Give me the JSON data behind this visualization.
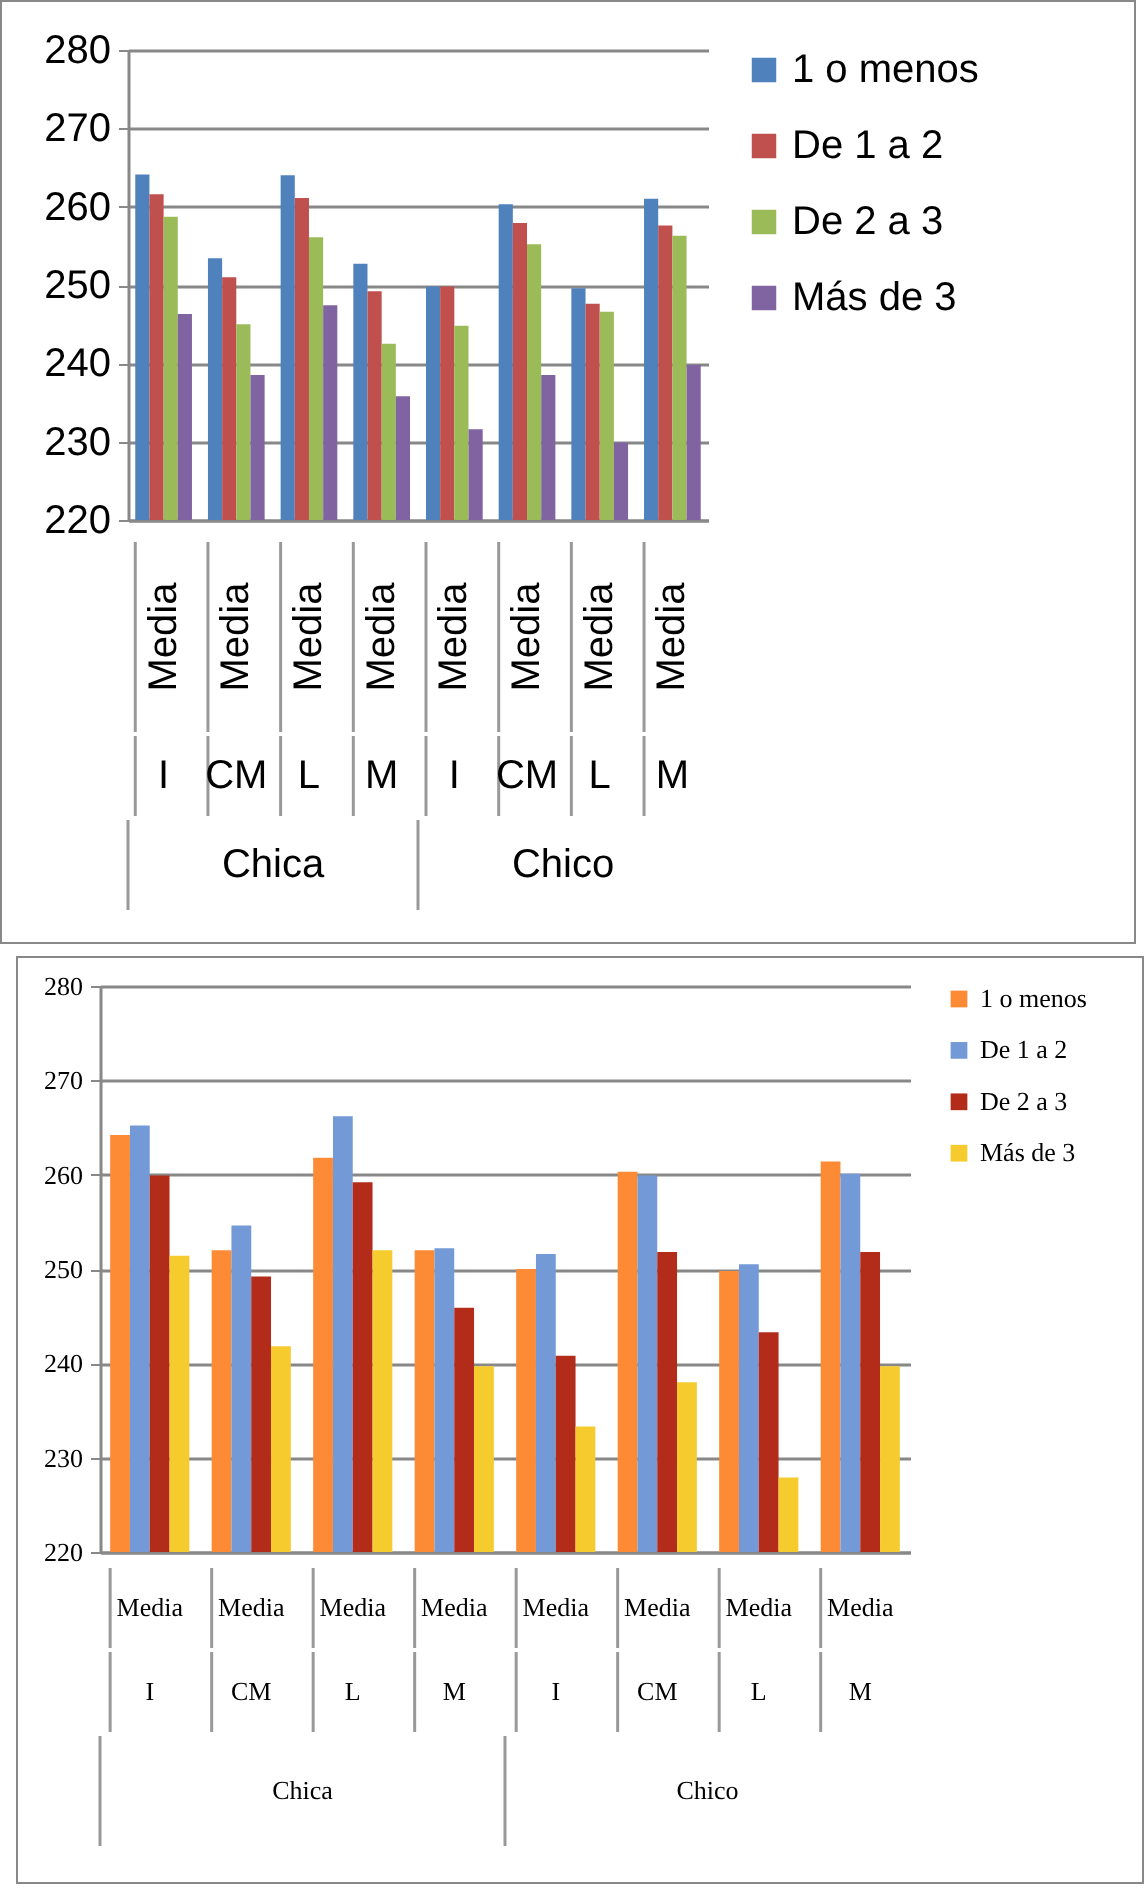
{
  "chart_data": [
    {
      "type": "bar",
      "categories": [
        "Media\nI",
        "Media\nCM",
        "Media\nL",
        "Media\nM",
        "Media\nI",
        "Media\nCM",
        "Media\nL",
        "Media\nM"
      ],
      "annotations": [
        "Chica",
        "Chico"
      ],
      "series": [
        {
          "name": "1 o menos",
          "color": "#4f81bd",
          "values": [
            264.1,
            253.4,
            264.0,
            252.7,
            249.8,
            260.3,
            249.6,
            261.0
          ]
        },
        {
          "name": "De 1 a 2",
          "color": "#c0504d",
          "values": [
            261.6,
            251.0,
            261.1,
            249.2,
            249.8,
            257.9,
            247.6,
            257.6
          ]
        },
        {
          "name": "De 2 a 3",
          "color": "#9bbb59",
          "values": [
            258.7,
            245.0,
            256.1,
            242.5,
            244.8,
            255.2,
            246.6,
            256.3
          ]
        },
        {
          "name": "Más de 3",
          "color": "#8064a2",
          "values": [
            246.3,
            238.5,
            247.4,
            235.8,
            231.6,
            238.5,
            229.9,
            239.8
          ]
        }
      ],
      "ylim": [
        220,
        280
      ],
      "yticks": [
        220,
        230,
        240,
        250,
        260,
        270,
        280
      ],
      "grid": "y",
      "legend": "right"
    },
    {
      "type": "bar",
      "categories": [
        "Media\nI",
        "Media\nCM",
        "Media\nL",
        "Media\nM",
        "Media\nI",
        "Media\nCM",
        "Media\nL",
        "Media\nM"
      ],
      "annotations": [
        "Chica",
        "Chico"
      ],
      "series": [
        {
          "name": "1 o menos",
          "color": "#fd8a35",
          "values": [
            264.2,
            252.0,
            261.8,
            252.0,
            250.0,
            260.3,
            249.8,
            261.4
          ]
        },
        {
          "name": "De 1 a 2",
          "color": "#7399d6",
          "values": [
            265.2,
            254.6,
            266.2,
            252.2,
            251.6,
            259.9,
            250.5,
            260.1
          ]
        },
        {
          "name": "De 2 a 3",
          "color": "#b22c19",
          "values": [
            259.9,
            249.2,
            259.2,
            245.9,
            240.8,
            251.8,
            243.3,
            251.8
          ]
        },
        {
          "name": "Más de 3",
          "color": "#f5cb2e",
          "values": [
            251.4,
            241.8,
            252.0,
            239.7,
            233.3,
            238.0,
            227.9,
            239.7
          ]
        }
      ],
      "ylim": [
        220,
        280
      ],
      "yticks": [
        220,
        230,
        240,
        250,
        260,
        270,
        280
      ],
      "grid": "y",
      "legend": "right"
    }
  ]
}
